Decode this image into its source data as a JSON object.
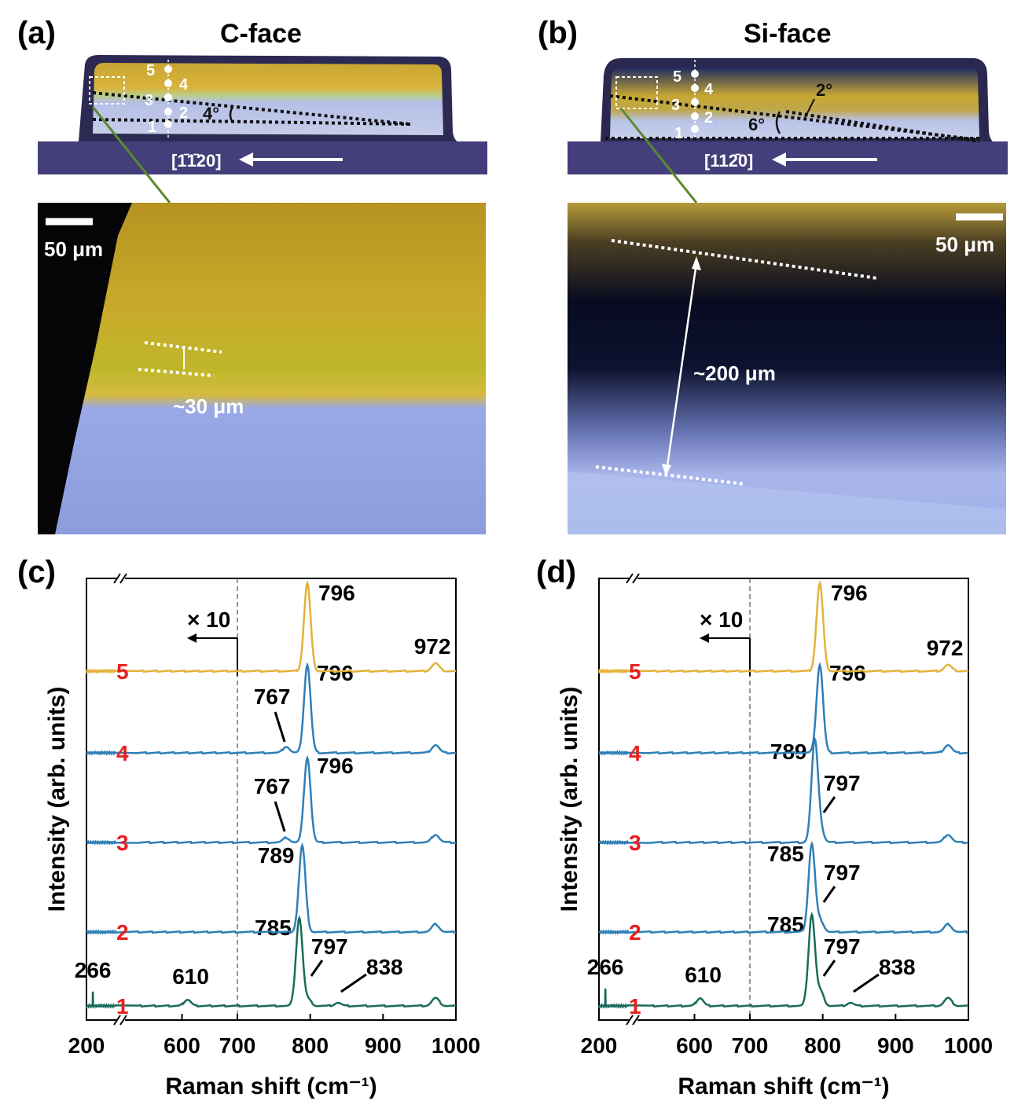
{
  "panel_a": {
    "label": "(a)",
    "title": "C-face",
    "points": [
      "1",
      "2",
      "3",
      "4",
      "5"
    ],
    "angle": "4°",
    "direction": "[1̄1̄20]",
    "scale_bar": "50 μm",
    "layer_thickness": "~30 μm",
    "colors": {
      "substrate": "#443f7a",
      "yellow": "#d2ac2a",
      "blue": "#8fa6e6"
    }
  },
  "panel_b": {
    "label": "(b)",
    "title": "Si-face",
    "points": [
      "1",
      "2",
      "3",
      "4",
      "5"
    ],
    "angle_large": "6°",
    "angle_small": "2°",
    "direction": "[112̄0]",
    "scale_bar": "50 μm",
    "layer_thickness": "~200 μm"
  },
  "chart_data": [
    {
      "panel": "(c)",
      "type": "line",
      "xlabel": "Raman shift (cm⁻¹)",
      "ylabel": "Intensity (arb. units)",
      "xlim": [
        200,
        1000
      ],
      "x_break": [
        200,
        500
      ],
      "xticks": [
        "200",
        "600",
        "700",
        "800",
        "900",
        "1000"
      ],
      "magnification": "× 10",
      "break_at": 700,
      "series": [
        {
          "name": "1",
          "color": "#1a6b5a",
          "peaks": [
            {
              "x": 266,
              "label": "266"
            },
            {
              "x": 610,
              "label": "610"
            },
            {
              "x": 785,
              "label": "785"
            },
            {
              "x": 797,
              "label": "797"
            },
            {
              "x": 838,
              "label": "838"
            }
          ]
        },
        {
          "name": "2",
          "color": "#2f7fb6",
          "peaks": [
            {
              "x": 789,
              "label": "789"
            }
          ]
        },
        {
          "name": "3",
          "color": "#2f7fb6",
          "peaks": [
            {
              "x": 767,
              "label": "767"
            },
            {
              "x": 796,
              "label": "796"
            }
          ]
        },
        {
          "name": "4",
          "color": "#2f7fb6",
          "peaks": [
            {
              "x": 767,
              "label": "767"
            },
            {
              "x": 796,
              "label": "796"
            }
          ]
        },
        {
          "name": "5",
          "color": "#e3b23c",
          "peaks": [
            {
              "x": 796,
              "label": "796"
            },
            {
              "x": 972,
              "label": "972"
            }
          ]
        }
      ]
    },
    {
      "panel": "(d)",
      "type": "line",
      "xlabel": "Raman shift (cm⁻¹)",
      "ylabel": "Intensity (arb. units)",
      "xlim": [
        200,
        1000
      ],
      "x_break": [
        200,
        500
      ],
      "xticks": [
        "200",
        "600",
        "700",
        "800",
        "900",
        "1000"
      ],
      "magnification": "× 10",
      "break_at": 700,
      "series": [
        {
          "name": "1",
          "color": "#1a6b5a",
          "peaks": [
            {
              "x": 266,
              "label": "266"
            },
            {
              "x": 610,
              "label": "610"
            },
            {
              "x": 785,
              "label": "785"
            },
            {
              "x": 797,
              "label": "797"
            },
            {
              "x": 838,
              "label": "838"
            }
          ]
        },
        {
          "name": "2",
          "color": "#2f7fb6",
          "peaks": [
            {
              "x": 785,
              "label": "785"
            },
            {
              "x": 797,
              "label": "797"
            }
          ]
        },
        {
          "name": "3",
          "color": "#2f7fb6",
          "peaks": [
            {
              "x": 789,
              "label": "789"
            },
            {
              "x": 797,
              "label": "797"
            }
          ]
        },
        {
          "name": "4",
          "color": "#2f7fb6",
          "peaks": [
            {
              "x": 796,
              "label": "796"
            }
          ]
        },
        {
          "name": "5",
          "color": "#e3b23c",
          "peaks": [
            {
              "x": 796,
              "label": "796"
            },
            {
              "x": 972,
              "label": "972"
            }
          ]
        }
      ]
    }
  ]
}
